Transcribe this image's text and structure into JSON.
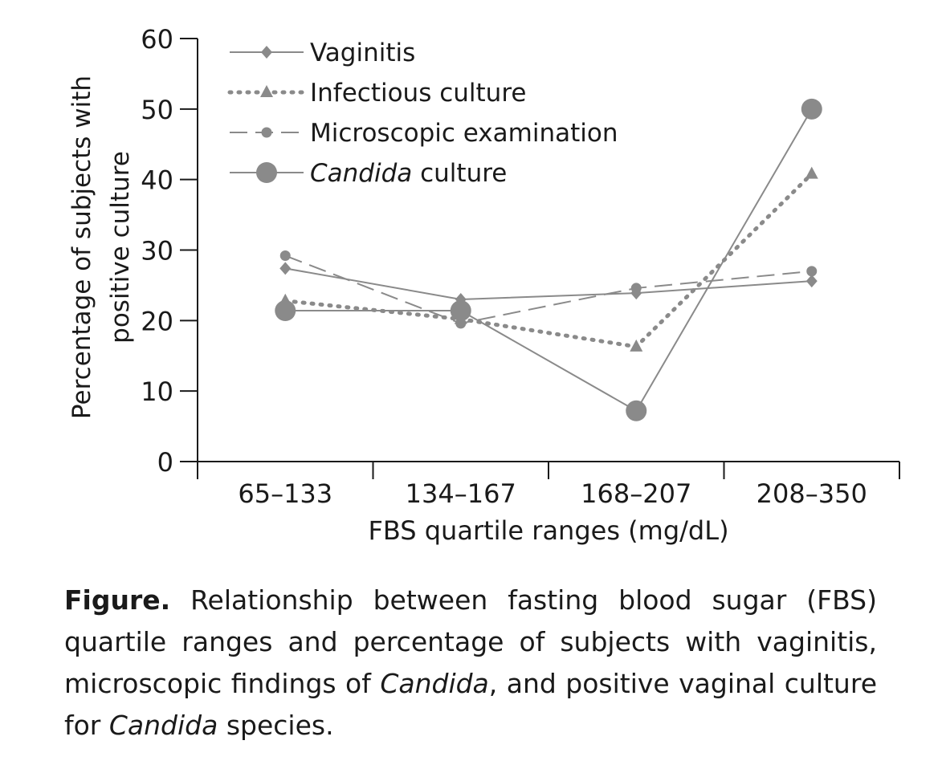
{
  "chart_data": {
    "type": "line",
    "categories": [
      "65–133",
      "134–167",
      "168–207",
      "208–350"
    ],
    "xlabel": "FBS quartile ranges (mg/dL)",
    "ylabel_line1": "Percentage of subjects with",
    "ylabel_line2": "positive culture",
    "ylim": [
      0,
      60
    ],
    "yticks": [
      0,
      10,
      20,
      30,
      40,
      50,
      60
    ],
    "grid": false,
    "legend_position": "top-left",
    "series": [
      {
        "name": "Vaginitis",
        "values": [
          27.4,
          23.0,
          23.9,
          25.6
        ],
        "marker": "diamond",
        "line": "solid",
        "color": "#8a8a8a"
      },
      {
        "name": "Infectious culture",
        "values": [
          22.8,
          20.2,
          16.3,
          40.8
        ],
        "marker": "triangle",
        "line": "dotted",
        "color": "#8a8a8a"
      },
      {
        "name": "Microscopic examination",
        "values": [
          29.2,
          19.6,
          24.6,
          27.0
        ],
        "marker": "circle-small",
        "line": "dashed",
        "color": "#8a8a8a"
      },
      {
        "name": "Candida culture",
        "values": [
          21.4,
          21.4,
          7.2,
          50.0
        ],
        "marker": "circle-large",
        "line": "solid",
        "color": "#8a8a8a"
      }
    ],
    "legend_labels": [
      {
        "italic": "",
        "rest": "Vaginitis"
      },
      {
        "italic": "",
        "rest": "Infectious culture"
      },
      {
        "italic": "",
        "rest": "Microscopic examination"
      },
      {
        "italic": "Candida",
        "rest": " culture"
      }
    ]
  },
  "caption": {
    "label": "Figure.",
    "part1": " Relationship between fasting blood sugar (FBS) quartile ranges and percentage of subjects with vaginitis, microscopic findings of ",
    "italic1": "Candida",
    "part2": ", and positive vaginal culture for ",
    "italic2": "Candida",
    "part3": " species."
  }
}
